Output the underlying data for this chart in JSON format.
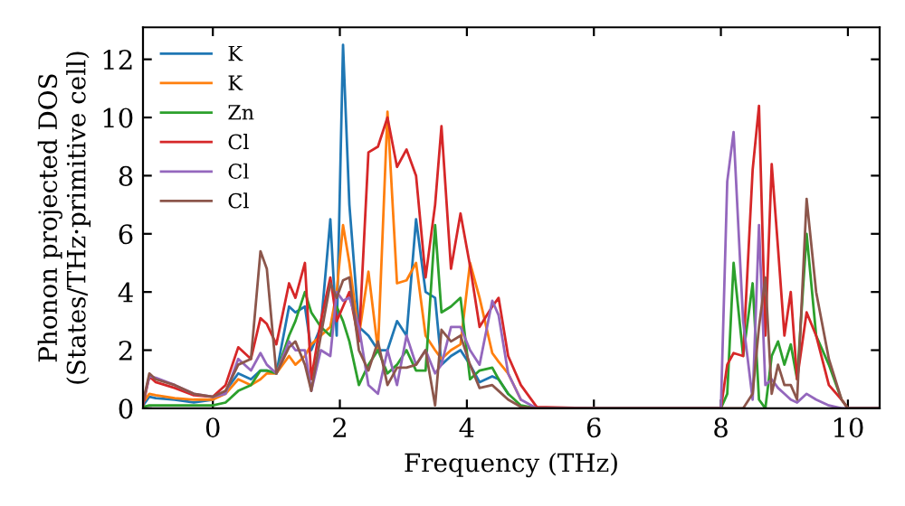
{
  "chart_data": {
    "type": "line",
    "xlabel": "Frequency (THz)",
    "ylabel": "Phonon projected DOS\n(States/THz·primitive cell)",
    "x": [
      -1.1,
      -1.0,
      -0.9,
      -0.6,
      -0.3,
      0,
      0.2,
      0.4,
      0.6,
      0.75,
      0.85,
      1.0,
      1.2,
      1.3,
      1.45,
      1.55,
      1.7,
      1.85,
      1.95,
      2.05,
      2.15,
      2.3,
      2.45,
      2.6,
      2.75,
      2.9,
      3.05,
      3.2,
      3.35,
      3.5,
      3.6,
      3.75,
      3.9,
      4.05,
      4.2,
      4.4,
      4.5,
      4.65,
      4.85,
      5.1,
      6.0,
      8.0,
      8.1,
      8.2,
      8.35,
      8.5,
      8.6,
      8.7,
      8.8,
      8.9,
      9.0,
      9.1,
      9.2,
      9.35,
      9.5,
      9.7,
      9.9,
      10.0,
      10.5
    ],
    "series": [
      {
        "name": "K",
        "color": "#1f77b4",
        "values": [
          0.1,
          0.4,
          0.35,
          0.3,
          0.2,
          0.3,
          0.6,
          1.2,
          1.0,
          1.3,
          1.3,
          1.2,
          3.5,
          3.3,
          3.5,
          2.0,
          2.8,
          6.5,
          2.5,
          12.5,
          7.0,
          2.8,
          2.5,
          2.0,
          2.0,
          3.0,
          2.5,
          6.5,
          4.0,
          3.8,
          1.5,
          1.8,
          2.0,
          1.5,
          0.9,
          1.1,
          1.0,
          0.5,
          null,
          null,
          null,
          null,
          null,
          null,
          null,
          null,
          null,
          null,
          null,
          null,
          null,
          null,
          null,
          null,
          null,
          null,
          null,
          null,
          null
        ]
      },
      {
        "name": "K",
        "color": "#ff7f0e",
        "values": [
          0.2,
          0.5,
          0.45,
          0.35,
          0.3,
          0.3,
          0.5,
          1.0,
          0.8,
          1.0,
          1.2,
          1.2,
          1.8,
          1.5,
          1.8,
          2.2,
          2.5,
          2.8,
          4.0,
          6.3,
          5.0,
          2.5,
          4.7,
          2.0,
          10.2,
          4.3,
          4.4,
          5.0,
          2.5,
          2.0,
          1.7,
          2.0,
          2.2,
          5.0,
          3.8,
          1.9,
          1.6,
          1.2,
          0.3,
          null,
          null,
          null,
          null,
          null,
          null,
          null,
          null,
          null,
          null,
          null,
          null,
          null,
          null,
          null,
          null,
          null,
          null,
          null,
          null
        ]
      },
      {
        "name": "Zn",
        "color": "#2ca02c",
        "values": [
          0.05,
          0.1,
          0.1,
          0.1,
          0.1,
          0.1,
          0.2,
          0.6,
          0.8,
          1.3,
          1.3,
          1.2,
          2.5,
          3.0,
          4.0,
          3.3,
          2.8,
          2.5,
          3.5,
          3.0,
          2.3,
          0.8,
          1.5,
          2.0,
          1.2,
          1.5,
          2.0,
          1.3,
          1.3,
          6.3,
          3.3,
          3.5,
          3.8,
          1.0,
          1.3,
          1.4,
          1.0,
          0.5,
          0.1,
          0,
          0,
          0,
          0.5,
          5.0,
          1.8,
          4.3,
          0.3,
          0,
          1.8,
          2.3,
          1.5,
          2.2,
          1.0,
          6.0,
          2.5,
          1.5,
          0.3,
          0,
          0
        ]
      },
      {
        "name": "Cl",
        "color": "#d62728",
        "values": [
          0.1,
          1.1,
          0.9,
          0.7,
          0.45,
          0.4,
          0.8,
          2.1,
          1.7,
          3.1,
          2.9,
          2.2,
          4.3,
          3.8,
          5.0,
          1.0,
          3.0,
          4.5,
          3.0,
          3.5,
          4.0,
          2.3,
          8.8,
          9.0,
          10.0,
          8.3,
          8.9,
          8.0,
          4.5,
          7.0,
          9.7,
          4.8,
          6.7,
          4.9,
          2.8,
          3.5,
          3.8,
          1.8,
          0.8,
          0.05,
          0,
          0,
          1.5,
          1.9,
          1.8,
          8.2,
          10.4,
          2.5,
          8.4,
          5.5,
          2.5,
          4.0,
          1.0,
          3.3,
          2.5,
          0.8,
          0.3,
          0,
          0
        ]
      },
      {
        "name": "Cl",
        "color": "#9467bd",
        "values": [
          0.2,
          1.1,
          1.05,
          0.8,
          0.5,
          0.4,
          0.5,
          1.7,
          1.3,
          1.9,
          1.5,
          1.2,
          2.3,
          2.0,
          2.0,
          0.6,
          2.0,
          1.8,
          4.0,
          3.7,
          3.8,
          2.8,
          0.8,
          0.5,
          2.0,
          0.8,
          2.5,
          1.5,
          2.0,
          1.2,
          1.5,
          2.8,
          2.8,
          2.0,
          1.5,
          3.7,
          3.2,
          1.2,
          0.3,
          0,
          0,
          0,
          7.8,
          9.5,
          3.0,
          0.3,
          6.3,
          0.8,
          1.0,
          0.7,
          0.5,
          0.3,
          0.2,
          0.5,
          0.3,
          0.1,
          0,
          0,
          0
        ]
      },
      {
        "name": "Cl",
        "color": "#8c564b",
        "values": [
          0.2,
          1.2,
          1.0,
          0.8,
          0.5,
          0.4,
          0.6,
          1.5,
          1.7,
          5.4,
          4.8,
          1.2,
          2.1,
          2.3,
          1.5,
          0.6,
          2.5,
          4.3,
          3.8,
          4.4,
          4.5,
          2.0,
          1.3,
          2.3,
          0.8,
          1.4,
          1.4,
          1.5,
          2.0,
          0.1,
          2.7,
          2.3,
          2.5,
          1.5,
          0.7,
          0.8,
          0.6,
          0.3,
          0.05,
          0,
          0,
          0,
          0,
          0,
          0,
          0.5,
          2.8,
          4.5,
          0.5,
          1.5,
          0.8,
          0.8,
          0.3,
          7.2,
          4.0,
          1.7,
          0.3,
          0,
          0
        ]
      }
    ],
    "xlim": [
      -1.1,
      10.5
    ],
    "ylim": [
      0,
      13.1
    ],
    "xticks": [
      0,
      2,
      4,
      6,
      8,
      10
    ],
    "yticks": [
      0,
      2,
      4,
      6,
      8,
      10,
      12
    ],
    "grid": false,
    "legend": "top left",
    "marker": "none",
    "line_style": "solid"
  }
}
